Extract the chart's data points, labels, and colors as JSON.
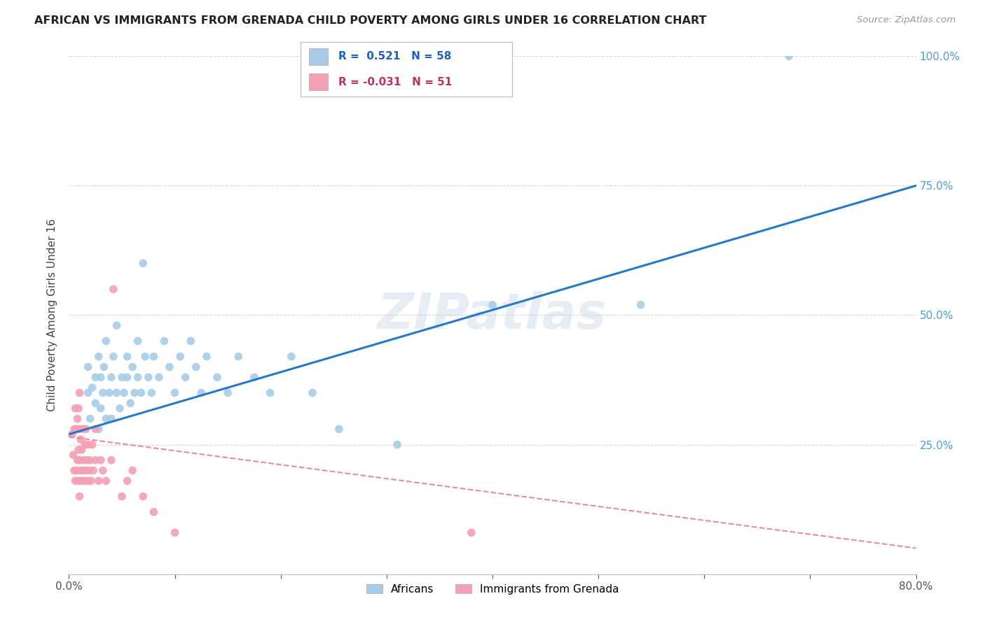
{
  "title": "AFRICAN VS IMMIGRANTS FROM GRENADA CHILD POVERTY AMONG GIRLS UNDER 16 CORRELATION CHART",
  "source": "Source: ZipAtlas.com",
  "ylabel": "Child Poverty Among Girls Under 16",
  "xlim": [
    0,
    0.8
  ],
  "ylim": [
    0,
    1.0
  ],
  "xtick_pos": [
    0.0,
    0.1,
    0.2,
    0.3,
    0.4,
    0.5,
    0.6,
    0.7,
    0.8
  ],
  "xticklabels": [
    "0.0%",
    "",
    "",
    "",
    "",
    "",
    "",
    "",
    "80.0%"
  ],
  "ytick_pos": [
    0.0,
    0.25,
    0.5,
    0.75,
    1.0
  ],
  "yticklabels_right": [
    "",
    "25.0%",
    "50.0%",
    "75.0%",
    "100.0%"
  ],
  "africans_R": 0.521,
  "africans_N": 58,
  "grenada_R": -0.031,
  "grenada_N": 51,
  "africans_color": "#a8cce8",
  "grenada_color": "#f4a0b5",
  "africans_line_color": "#2878c8",
  "grenada_line_color": "#e0909a",
  "watermark": "ZIPatlas",
  "africans_line_x0": 0.0,
  "africans_line_y0": 0.27,
  "africans_line_x1": 0.8,
  "africans_line_y1": 0.75,
  "grenada_line_x0": 0.0,
  "grenada_line_y0": 0.265,
  "grenada_line_x1": 0.8,
  "grenada_line_y1": 0.05,
  "africans_x": [
    0.018,
    0.018,
    0.02,
    0.022,
    0.025,
    0.025,
    0.028,
    0.028,
    0.03,
    0.03,
    0.032,
    0.033,
    0.035,
    0.035,
    0.038,
    0.04,
    0.04,
    0.042,
    0.045,
    0.045,
    0.048,
    0.05,
    0.052,
    0.055,
    0.055,
    0.058,
    0.06,
    0.062,
    0.065,
    0.065,
    0.068,
    0.07,
    0.072,
    0.075,
    0.078,
    0.08,
    0.085,
    0.09,
    0.095,
    0.1,
    0.105,
    0.11,
    0.115,
    0.12,
    0.125,
    0.13,
    0.14,
    0.15,
    0.16,
    0.175,
    0.19,
    0.21,
    0.23,
    0.255,
    0.31,
    0.4,
    0.54,
    0.68
  ],
  "africans_y": [
    0.35,
    0.4,
    0.3,
    0.36,
    0.33,
    0.38,
    0.28,
    0.42,
    0.32,
    0.38,
    0.35,
    0.4,
    0.3,
    0.45,
    0.35,
    0.3,
    0.38,
    0.42,
    0.35,
    0.48,
    0.32,
    0.38,
    0.35,
    0.42,
    0.38,
    0.33,
    0.4,
    0.35,
    0.45,
    0.38,
    0.35,
    0.6,
    0.42,
    0.38,
    0.35,
    0.42,
    0.38,
    0.45,
    0.4,
    0.35,
    0.42,
    0.38,
    0.45,
    0.4,
    0.35,
    0.42,
    0.38,
    0.35,
    0.42,
    0.38,
    0.35,
    0.42,
    0.35,
    0.28,
    0.25,
    0.52,
    0.52,
    1.0
  ],
  "grenada_x": [
    0.003,
    0.004,
    0.005,
    0.005,
    0.006,
    0.006,
    0.007,
    0.007,
    0.008,
    0.008,
    0.009,
    0.009,
    0.009,
    0.01,
    0.01,
    0.01,
    0.01,
    0.011,
    0.011,
    0.012,
    0.012,
    0.013,
    0.013,
    0.014,
    0.015,
    0.015,
    0.016,
    0.016,
    0.017,
    0.018,
    0.018,
    0.019,
    0.02,
    0.021,
    0.022,
    0.023,
    0.025,
    0.025,
    0.028,
    0.03,
    0.032,
    0.035,
    0.04,
    0.042,
    0.05,
    0.055,
    0.06,
    0.07,
    0.08,
    0.1,
    0.38
  ],
  "grenada_y": [
    0.27,
    0.23,
    0.2,
    0.28,
    0.18,
    0.32,
    0.2,
    0.28,
    0.22,
    0.3,
    0.18,
    0.24,
    0.32,
    0.15,
    0.22,
    0.28,
    0.35,
    0.2,
    0.26,
    0.18,
    0.24,
    0.2,
    0.28,
    0.22,
    0.18,
    0.25,
    0.2,
    0.28,
    0.22,
    0.18,
    0.25,
    0.2,
    0.22,
    0.18,
    0.25,
    0.2,
    0.22,
    0.28,
    0.18,
    0.22,
    0.2,
    0.18,
    0.22,
    0.55,
    0.15,
    0.18,
    0.2,
    0.15,
    0.12,
    0.08,
    0.08
  ]
}
